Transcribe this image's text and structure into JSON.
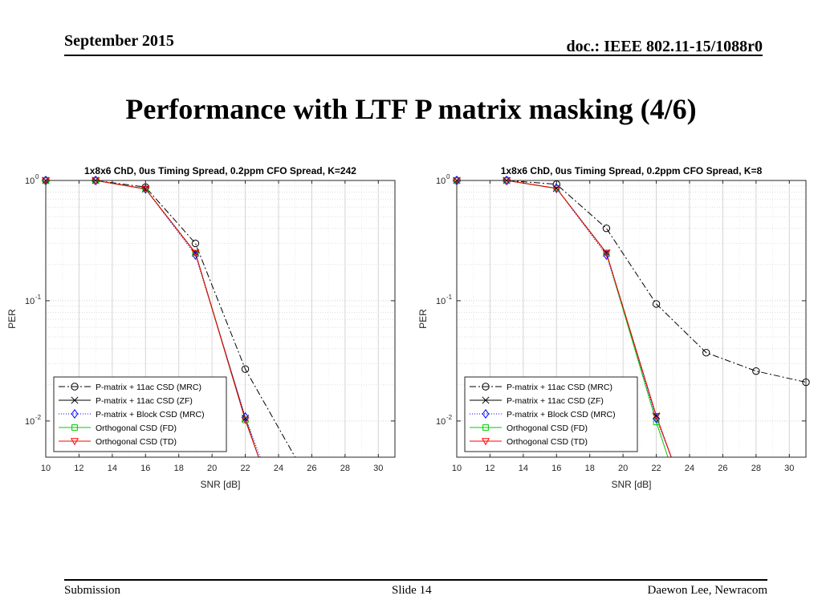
{
  "header": {
    "date": "September 2015",
    "doc": "doc.: IEEE 802.11-15/1088r0"
  },
  "title": "Performance with LTF P matrix masking (4/6)",
  "footer": {
    "left": "Submission",
    "center": "Slide 14",
    "right": "Daewon Lee, Newracom"
  },
  "chart_data": [
    {
      "type": "line",
      "title": "1x8x6 ChD, 0us Timing Spread, 0.2ppm CFO Spread, K=242",
      "xlabel": "SNR [dB]",
      "ylabel": "PER",
      "yscale": "log",
      "xlim": [
        10,
        31
      ],
      "ylim": [
        0.005,
        1
      ],
      "xticks": [
        10,
        12,
        14,
        16,
        18,
        20,
        22,
        24,
        26,
        28,
        30
      ],
      "yticks": [
        {
          "value": 1,
          "base": "10",
          "exp": "0"
        },
        {
          "value": 0.1,
          "base": "10",
          "exp": "-1"
        },
        {
          "value": 0.01,
          "base": "10",
          "exp": "-2"
        }
      ],
      "grid": true,
      "legend_position": "bottom-left",
      "series": [
        {
          "name": "P-matrix + 11ac CSD (MRC)",
          "color": "#000000",
          "dash": "8 3 2 3",
          "marker": "circle",
          "x": [
            10,
            13,
            16,
            19,
            22,
            25
          ],
          "y": [
            1,
            1,
            0.88,
            0.3,
            0.027,
            0.005
          ]
        },
        {
          "name": "P-matrix + 11ac CSD (ZF)",
          "color": "#000000",
          "dash": "",
          "marker": "x",
          "x": [
            10,
            13,
            16,
            19,
            22,
            22.8
          ],
          "y": [
            1,
            1,
            0.85,
            0.25,
            0.0105,
            0.005
          ]
        },
        {
          "name": "P-matrix + Block CSD (MRC)",
          "color": "#0000ff",
          "dash": "1 2",
          "marker": "diamond",
          "x": [
            10,
            13,
            16,
            19,
            22,
            22.9
          ],
          "y": [
            1,
            1,
            0.85,
            0.24,
            0.0108,
            0.005
          ]
        },
        {
          "name": "Orthogonal CSD (FD)",
          "color": "#00cc00",
          "dash": "",
          "marker": "square",
          "x": [
            10,
            13,
            16,
            19,
            22,
            22.8
          ],
          "y": [
            1,
            1,
            0.85,
            0.25,
            0.0102,
            0.005
          ]
        },
        {
          "name": "Orthogonal CSD (TD)",
          "color": "#ff0000",
          "dash": "",
          "marker": "triangle",
          "x": [
            10,
            13,
            16,
            19,
            22,
            22.8
          ],
          "y": [
            1,
            1,
            0.85,
            0.25,
            0.0102,
            0.005
          ]
        }
      ]
    },
    {
      "type": "line",
      "title": "1x8x6 ChD, 0us Timing Spread, 0.2ppm CFO Spread, K=8",
      "xlabel": "SNR [dB]",
      "ylabel": "PER",
      "yscale": "log",
      "xlim": [
        10,
        31
      ],
      "ylim": [
        0.005,
        1
      ],
      "xticks": [
        10,
        12,
        14,
        16,
        18,
        20,
        22,
        24,
        26,
        28,
        30
      ],
      "yticks": [
        {
          "value": 1,
          "base": "10",
          "exp": "0"
        },
        {
          "value": 0.1,
          "base": "10",
          "exp": "-1"
        },
        {
          "value": 0.01,
          "base": "10",
          "exp": "-2"
        }
      ],
      "grid": true,
      "legend_position": "bottom-left",
      "series": [
        {
          "name": "P-matrix + 11ac CSD (MRC)",
          "color": "#000000",
          "dash": "8 3 2 3",
          "marker": "circle",
          "x": [
            10,
            13,
            16,
            19,
            22,
            25,
            28,
            31
          ],
          "y": [
            1,
            1,
            0.93,
            0.4,
            0.094,
            0.037,
            0.026,
            0.021
          ]
        },
        {
          "name": "P-matrix + 11ac CSD (ZF)",
          "color": "#000000",
          "dash": "",
          "marker": "x",
          "x": [
            10,
            13,
            16,
            19,
            22,
            22.9
          ],
          "y": [
            1,
            1,
            0.86,
            0.25,
            0.011,
            0.005
          ]
        },
        {
          "name": "P-matrix + Block CSD (MRC)",
          "color": "#0000ff",
          "dash": "1 2",
          "marker": "diamond",
          "x": [
            10,
            13,
            16,
            19,
            22,
            22.9
          ],
          "y": [
            1,
            1,
            0.86,
            0.24,
            0.0105,
            0.005
          ]
        },
        {
          "name": "Orthogonal CSD (FD)",
          "color": "#00cc00",
          "dash": "",
          "marker": "square",
          "x": [
            10,
            13,
            16,
            19,
            22,
            22.7
          ],
          "y": [
            1,
            1,
            0.86,
            0.25,
            0.0098,
            0.005
          ]
        },
        {
          "name": "Orthogonal CSD (TD)",
          "color": "#ff0000",
          "dash": "",
          "marker": "triangle",
          "x": [
            10,
            13,
            16,
            19,
            22,
            22.9
          ],
          "y": [
            1,
            1,
            0.86,
            0.25,
            0.011,
            0.005
          ]
        }
      ]
    }
  ]
}
